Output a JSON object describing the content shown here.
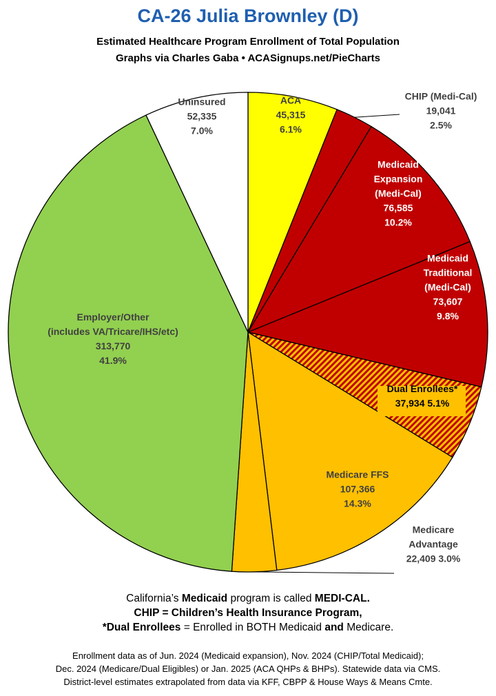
{
  "header": {
    "title": "CA-26 Julia Brownley (D)",
    "subtitle_1": "Estimated Healthcare Program Enrollment of Total Population",
    "subtitle_2": "Graphs via Charles Gaba  •  ACASignups.net/PieCharts"
  },
  "chart_data": {
    "type": "pie",
    "start": "12 o'clock",
    "direction": "clockwise",
    "slices": [
      {
        "label_lines": [
          "ACA"
        ],
        "value": 45315,
        "value_text": "45,315",
        "percent": "6.1%",
        "color": "#ffff00",
        "text_color": "#404040"
      },
      {
        "label_lines": [
          "CHIP (Medi-Cal)"
        ],
        "value": 19041,
        "value_text": "19,041",
        "percent": "2.5%",
        "color": "#c00000",
        "text_color": "#404040"
      },
      {
        "label_lines": [
          "Medicaid",
          "Expansion",
          "(Medi-Cal)"
        ],
        "value": 76585,
        "value_text": "76,585",
        "percent": "10.2%",
        "color": "#c00000",
        "text_color": "#ffffff"
      },
      {
        "label_lines": [
          "Medicaid",
          "Traditional",
          "(Medi-Cal)"
        ],
        "value": 73607,
        "value_text": "73,607",
        "percent": "9.8%",
        "color": "#c00000",
        "text_color": "#ffffff"
      },
      {
        "label_lines": [
          "Dual Enrollees*"
        ],
        "value": 37934,
        "value_text": "37,934",
        "percent": "5.1%",
        "color": "#c00000",
        "pattern": "hatched",
        "text_color": "#000000"
      },
      {
        "label_lines": [
          "Medicare FFS"
        ],
        "value": 107366,
        "value_text": "107,366",
        "percent": "14.3%",
        "color": "#ffc000",
        "text_color": "#404040"
      },
      {
        "label_lines": [
          "Medicare",
          "Advantage"
        ],
        "value": 22409,
        "value_text": "22,409",
        "percent": "3.0%",
        "color": "#ffc000",
        "text_color": "#404040"
      },
      {
        "label_lines": [
          "Employer/Other",
          "(includes VA/Tricare/IHS/etc)"
        ],
        "value": 313770,
        "value_text": "313,770",
        "percent": "41.9%",
        "color": "#92d050",
        "text_color": "#404040"
      },
      {
        "label_lines": [
          "Uninsured"
        ],
        "value": 52335,
        "value_text": "52,335",
        "percent": "7.0%",
        "color": "#ffffff",
        "text_color": "#404040"
      }
    ]
  },
  "notes": {
    "line1_pre": "California’s ",
    "line1_b1": "Medicaid",
    "line1_mid": " program is called ",
    "line1_b2": "MEDI-CAL.",
    "line2": "CHIP = Children’s Health Insurance Program,",
    "line3_b1": "*Dual Enrollees",
    "line3_mid": " = Enrolled in BOTH Medicaid ",
    "line3_b2": "and",
    "line3_end": " Medicare."
  },
  "footer": {
    "line1": "Enrollment data as of Jun. 2024 (Medicaid expansion), Nov. 2024 (CHIP/Total Medicaid);",
    "line2": "Dec. 2024 (Medicare/Dual Eligibles) or Jan. 2025 (ACA QHPs & BHPs). Statewide data via CMS.",
    "line3": "District-level estimates extrapolated from data via KFF, CBPP & House Ways & Means Cmte."
  }
}
